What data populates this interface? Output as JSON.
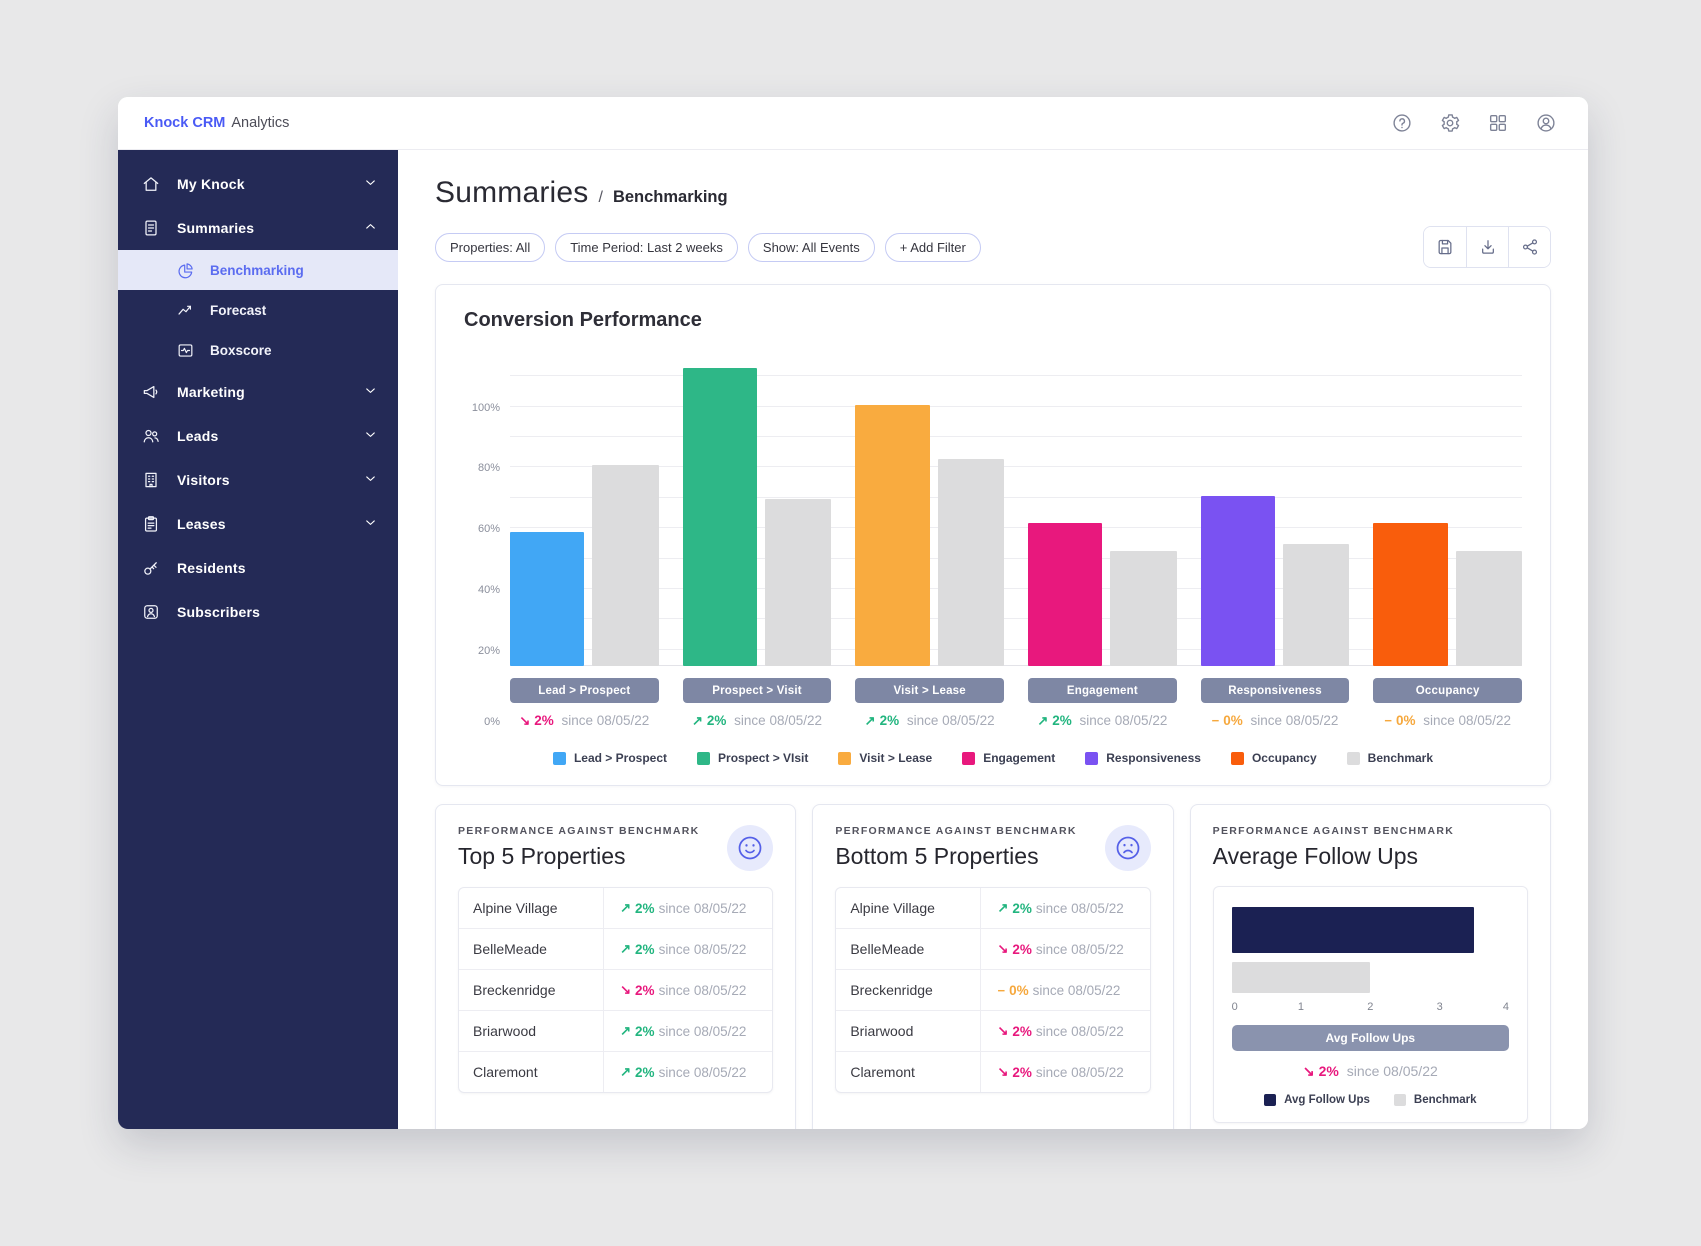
{
  "app": {
    "brand": "Knock CRM",
    "product": "Analytics"
  },
  "topbar": {
    "icons": [
      "help-icon",
      "settings-icon",
      "apps-icon",
      "account-icon"
    ]
  },
  "sidebar": {
    "items": [
      {
        "label": "My Knock",
        "icon": "home-icon",
        "chevron": "down"
      },
      {
        "label": "Summaries",
        "icon": "summaries-icon",
        "chevron": "up"
      },
      {
        "label": "Benchmarking",
        "icon": "pie-chart-icon",
        "selected": true
      },
      {
        "label": "Forecast",
        "icon": "forecast-icon"
      },
      {
        "label": "Boxscore",
        "icon": "boxscore-icon"
      },
      {
        "label": "Marketing",
        "icon": "megaphone-icon",
        "chevron": "down"
      },
      {
        "label": "Leads",
        "icon": "leads-icon",
        "chevron": "down"
      },
      {
        "label": "Visitors",
        "icon": "building-icon",
        "chevron": "down"
      },
      {
        "label": "Leases",
        "icon": "lease-icon",
        "chevron": "down"
      },
      {
        "label": "Residents",
        "icon": "key-icon"
      },
      {
        "label": "Subscribers",
        "icon": "subscriber-icon"
      }
    ]
  },
  "header": {
    "title": "Summaries",
    "separator": "/",
    "breadcrumb": "Benchmarking"
  },
  "filters": {
    "chips": [
      "Properties: All",
      "Time Period: Last 2 weeks",
      "Show: All Events",
      "+ Add Filter"
    ]
  },
  "toolbar": {
    "icons": [
      "save-icon",
      "download-icon",
      "share-icon"
    ]
  },
  "chart_data": [
    {
      "type": "bar",
      "title": "Conversion Performance",
      "categories": [
        "Lead > Prospect",
        "Prospect > Visit",
        "Visit > Lease",
        "Engagement",
        "Responsiveness",
        "Occupancy"
      ],
      "series": [
        {
          "name": "Conversion",
          "values": [
            59,
            113,
            101,
            62,
            71,
            62
          ]
        },
        {
          "name": "Benchmark",
          "values": [
            81,
            70,
            83,
            53,
            55,
            53
          ]
        }
      ],
      "unit": "%",
      "colors": [
        "#41a7f5",
        "#2eb787",
        "#f9ab3f",
        "#e8187d",
        "#7a52f2",
        "#f95d0c"
      ],
      "benchmark_color": "#dcdcdd",
      "ylim": [
        15,
        117
      ],
      "yticks": [
        {
          "v": 20,
          "label": "20%"
        },
        {
          "v": 40,
          "label": "40%"
        },
        {
          "v": 60,
          "label": "60%"
        },
        {
          "v": 80,
          "label": "80%"
        },
        {
          "v": 100,
          "label": "100%"
        }
      ],
      "zero_label": "0%",
      "grid": {
        "from": 20,
        "to": 110,
        "step": 10
      },
      "changes": [
        {
          "dir": "down",
          "arrow": "↘",
          "delta": "2%",
          "text": "since 08/05/22"
        },
        {
          "dir": "up",
          "arrow": "↗",
          "delta": "2%",
          "text": "since 08/05/22"
        },
        {
          "dir": "up",
          "arrow": "↗",
          "delta": "2%",
          "text": "since 08/05/22"
        },
        {
          "dir": "up",
          "arrow": "↗",
          "delta": "2%",
          "text": "since 08/05/22"
        },
        {
          "dir": "flat",
          "arrow": "−",
          "delta": "0%",
          "text": "since 08/05/22"
        },
        {
          "dir": "flat",
          "arrow": "−",
          "delta": "0%",
          "text": "since 08/05/22"
        }
      ],
      "legend": [
        "Lead > Prospect",
        "Prospect > VIsit",
        "Visit > Lease",
        "Engagement",
        "Responsiveness",
        "Occupancy",
        "Benchmark"
      ],
      "legend_position": "bottom"
    },
    {
      "type": "bar",
      "orientation": "horizontal",
      "title": "Average Follow Ups",
      "series": [
        {
          "name": "Avg Follow Ups",
          "value": 3.5,
          "color": "#1b2153"
        },
        {
          "name": "Benchmark",
          "value": 2,
          "color": "#dcdcdd"
        }
      ],
      "xlim": [
        0,
        4
      ],
      "xticks": [
        "0",
        "1",
        "2",
        "3",
        "4"
      ],
      "pill": "Avg Follow Ups",
      "change": {
        "dir": "down",
        "arrow": "↘",
        "delta": "2%",
        "text": "since 08/05/22"
      },
      "legend": [
        "Avg Follow Ups",
        "Benchmark"
      ]
    }
  ],
  "cards": {
    "top5": {
      "eyebrow": "PERFORMANCE AGAINST BENCHMARK",
      "title": "Top 5 Properties",
      "mood": "happy-face-icon",
      "rows": [
        {
          "name": "Alpine Village",
          "change": {
            "dir": "up",
            "arrow": "↗",
            "delta": "2%",
            "text": "since 08/05/22"
          }
        },
        {
          "name": "BelleMeade",
          "change": {
            "dir": "up",
            "arrow": "↗",
            "delta": "2%",
            "text": "since 08/05/22"
          }
        },
        {
          "name": "Breckenridge",
          "change": {
            "dir": "down",
            "arrow": "↘",
            "delta": "2%",
            "text": "since 08/05/22"
          }
        },
        {
          "name": "Briarwood",
          "change": {
            "dir": "up",
            "arrow": "↗",
            "delta": "2%",
            "text": "since 08/05/22"
          }
        },
        {
          "name": "Claremont",
          "change": {
            "dir": "up",
            "arrow": "↗",
            "delta": "2%",
            "text": "since 08/05/22"
          }
        }
      ]
    },
    "bottom5": {
      "eyebrow": "PERFORMANCE AGAINST BENCHMARK",
      "title": "Bottom 5 Properties",
      "mood": "sad-face-icon",
      "rows": [
        {
          "name": "Alpine Village",
          "change": {
            "dir": "up",
            "arrow": "↗",
            "delta": "2%",
            "text": "since 08/05/22"
          }
        },
        {
          "name": "BelleMeade",
          "change": {
            "dir": "down",
            "arrow": "↘",
            "delta": "2%",
            "text": "since 08/05/22"
          }
        },
        {
          "name": "Breckenridge",
          "change": {
            "dir": "flat",
            "arrow": "−",
            "delta": "0%",
            "text": "since 08/05/22"
          }
        },
        {
          "name": "Briarwood",
          "change": {
            "dir": "down",
            "arrow": "↘",
            "delta": "2%",
            "text": "since 08/05/22"
          }
        },
        {
          "name": "Claremont",
          "change": {
            "dir": "down",
            "arrow": "↘",
            "delta": "2%",
            "text": "since 08/05/22"
          }
        }
      ]
    },
    "followups": {
      "eyebrow": "PERFORMANCE AGAINST BENCHMARK",
      "title": "Average Follow Ups"
    }
  }
}
